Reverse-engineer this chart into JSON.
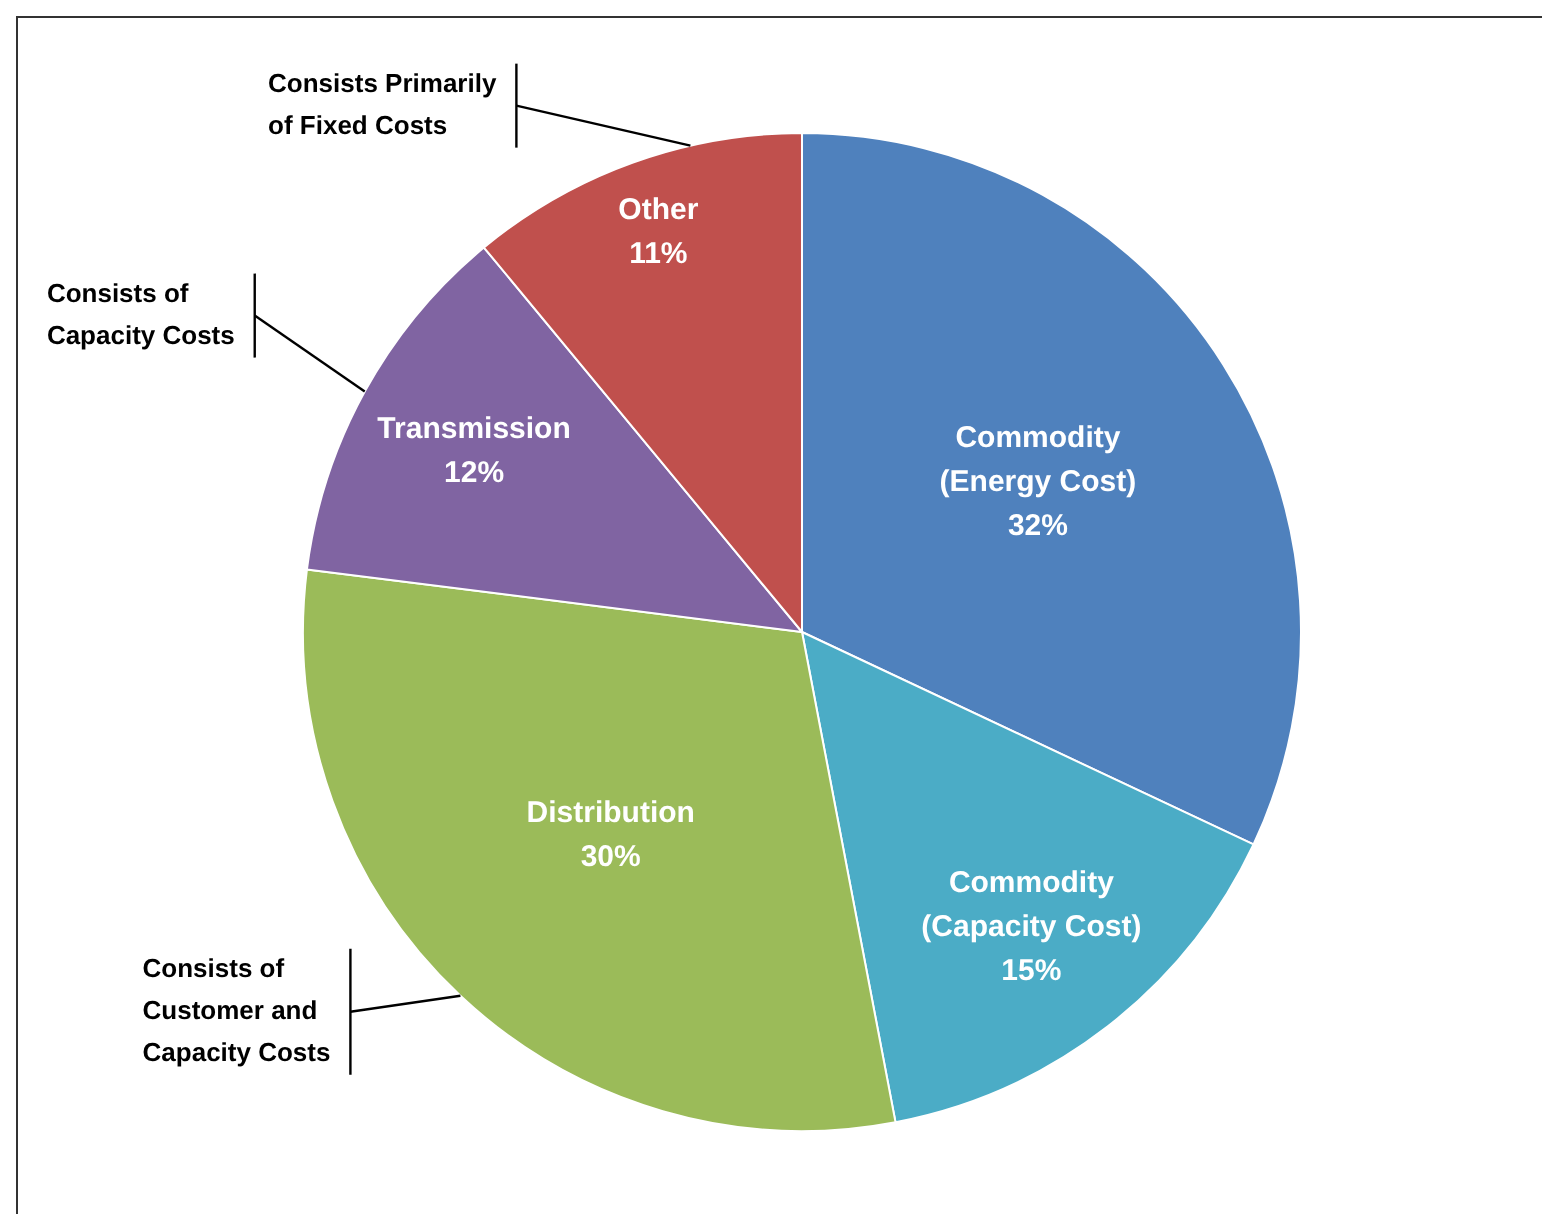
{
  "chart_data": {
    "type": "pie",
    "categories": [
      "Commodity (Energy Cost)",
      "Commodity (Capacity Cost)",
      "Distribution",
      "Transmission",
      "Other"
    ],
    "values": [
      32,
      15,
      30,
      12,
      11
    ],
    "colors": [
      "#4f81bd",
      "#4bacc6",
      "#9bbb59",
      "#8064a2",
      "#c0504d"
    ],
    "value_labels": [
      "32%",
      "15%",
      "30%",
      "12%",
      "11%"
    ],
    "legend": false,
    "annotations": [
      {
        "text": "Consists Primarily\nof Fixed Costs",
        "x": "Other"
      },
      {
        "text": "Consists of\nCapacity Costs",
        "x": "Transmission"
      },
      {
        "text": "Consists of\nCustomer and\nCapacity Costs",
        "x": "Distribution"
      }
    ]
  }
}
